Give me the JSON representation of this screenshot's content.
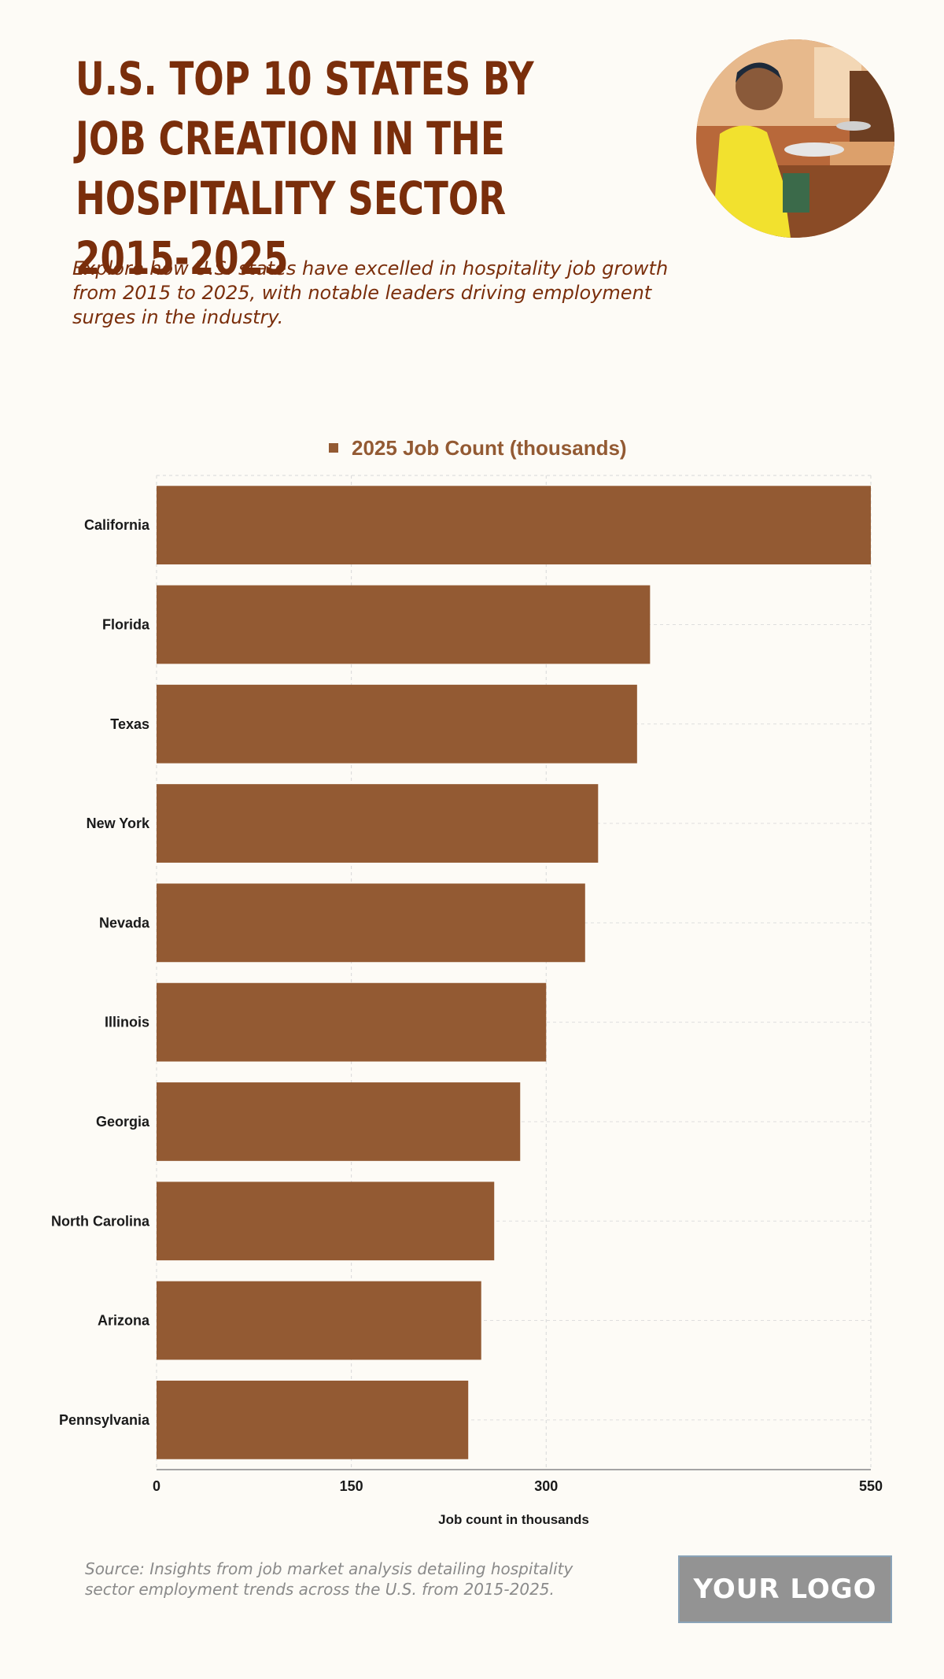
{
  "header": {
    "title": "U.S. Top 10 States by Job Creation in the Hospitality Sector 2015-2025",
    "subtitle": "Explore how U.S. states have excelled in hospitality job growth from 2015 to 2025, with notable leaders driving employment surges in the industry."
  },
  "footer": {
    "source": "Source: Insights from job market analysis detailing hospitality sector employment trends across the U.S. from 2015-2025.",
    "logo": "YOUR LOGO"
  },
  "colors": {
    "bar": "#935a33",
    "title": "#7a2e0b",
    "background": "#fdfbf6"
  },
  "chart_data": {
    "type": "bar",
    "orientation": "horizontal",
    "categories": [
      "California",
      "Florida",
      "Texas",
      "New York",
      "Nevada",
      "Illinois",
      "Georgia",
      "North Carolina",
      "Arizona",
      "Pennsylvania"
    ],
    "series": [
      {
        "name": "2025 Job Count (thousands)",
        "values": [
          550,
          380,
          370,
          340,
          330,
          300,
          280,
          260,
          250,
          240
        ]
      }
    ],
    "xlabel": "Job count in thousands",
    "xlim": [
      0,
      550
    ],
    "xticks": [
      0,
      150,
      300,
      550
    ],
    "grid": true,
    "legend": "top-center"
  }
}
